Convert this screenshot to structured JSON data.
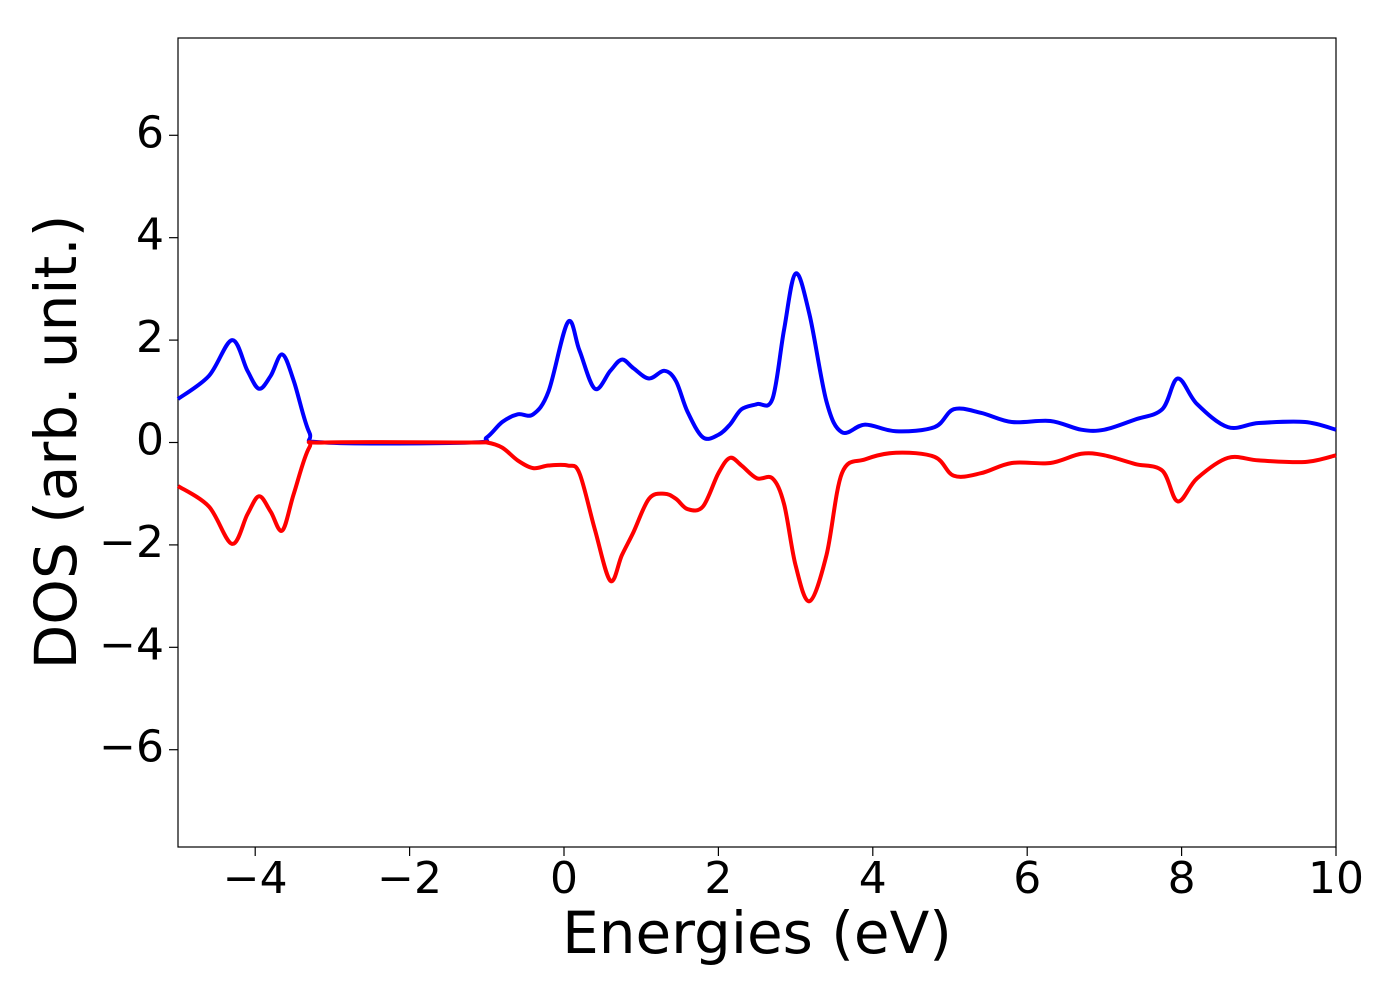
{
  "chart_data": {
    "type": "line",
    "xlabel": "Energies (eV)",
    "ylabel": "DOS (arb. unit.)",
    "x": [
      -5,
      -4.6,
      -4.3,
      -4.1,
      -3.95,
      -3.8,
      -3.65,
      -3.5,
      -3.3,
      -3.1,
      -1.2,
      -1.0,
      -0.8,
      -0.6,
      -0.4,
      -0.2,
      0.05,
      0.2,
      0.4,
      0.6,
      0.75,
      0.9,
      1.1,
      1.3,
      1.45,
      1.6,
      1.8,
      2.0,
      2.15,
      2.3,
      2.5,
      2.7,
      2.85,
      3.0,
      3.18,
      3.4,
      3.6,
      3.9,
      4.3,
      4.8,
      5.05,
      5.4,
      5.8,
      6.3,
      6.7,
      7.0,
      7.4,
      7.75,
      7.95,
      8.2,
      8.6,
      9.0,
      9.6,
      10
    ],
    "series": [
      {
        "color": "#0000ff",
        "values": [
          0.85,
          1.3,
          2.0,
          1.4,
          1.05,
          1.3,
          1.72,
          1.2,
          0.2,
          0.0,
          0.0,
          0.1,
          0.4,
          0.55,
          0.55,
          1.0,
          2.35,
          1.8,
          1.05,
          1.4,
          1.62,
          1.45,
          1.25,
          1.4,
          1.2,
          0.6,
          0.1,
          0.15,
          0.35,
          0.65,
          0.75,
          0.85,
          2.2,
          3.3,
          2.5,
          0.8,
          0.2,
          0.35,
          0.22,
          0.3,
          0.65,
          0.58,
          0.4,
          0.42,
          0.25,
          0.25,
          0.45,
          0.65,
          1.25,
          0.75,
          0.3,
          0.38,
          0.4,
          0.25
        ]
      },
      {
        "color": "#ff0000",
        "values": [
          -0.85,
          -1.25,
          -1.98,
          -1.4,
          -1.05,
          -1.35,
          -1.72,
          -1.0,
          -0.1,
          0,
          0,
          0,
          -0.1,
          -0.35,
          -0.5,
          -0.45,
          -0.45,
          -0.6,
          -1.7,
          -2.7,
          -2.2,
          -1.75,
          -1.1,
          -1.0,
          -1.1,
          -1.3,
          -1.25,
          -0.6,
          -0.3,
          -0.45,
          -0.7,
          -0.7,
          -1.2,
          -2.4,
          -3.1,
          -2.2,
          -0.6,
          -0.33,
          -0.2,
          -0.28,
          -0.65,
          -0.6,
          -0.4,
          -0.4,
          -0.22,
          -0.25,
          -0.42,
          -0.55,
          -1.15,
          -0.7,
          -0.3,
          -0.35,
          -0.38,
          -0.25
        ]
      }
    ],
    "xlim": [
      -5,
      10
    ],
    "xticks": [
      {
        "value": -4,
        "label": "−4"
      },
      {
        "value": -2,
        "label": "−2"
      },
      0,
      2,
      4,
      6,
      8,
      10
    ],
    "ylim": [
      -7.9,
      7.9
    ],
    "yticks": [
      {
        "value": -6,
        "label": "−6"
      },
      {
        "value": -4,
        "label": "−4"
      },
      {
        "value": -2,
        "label": "−2"
      },
      0,
      2,
      4,
      6
    ]
  }
}
